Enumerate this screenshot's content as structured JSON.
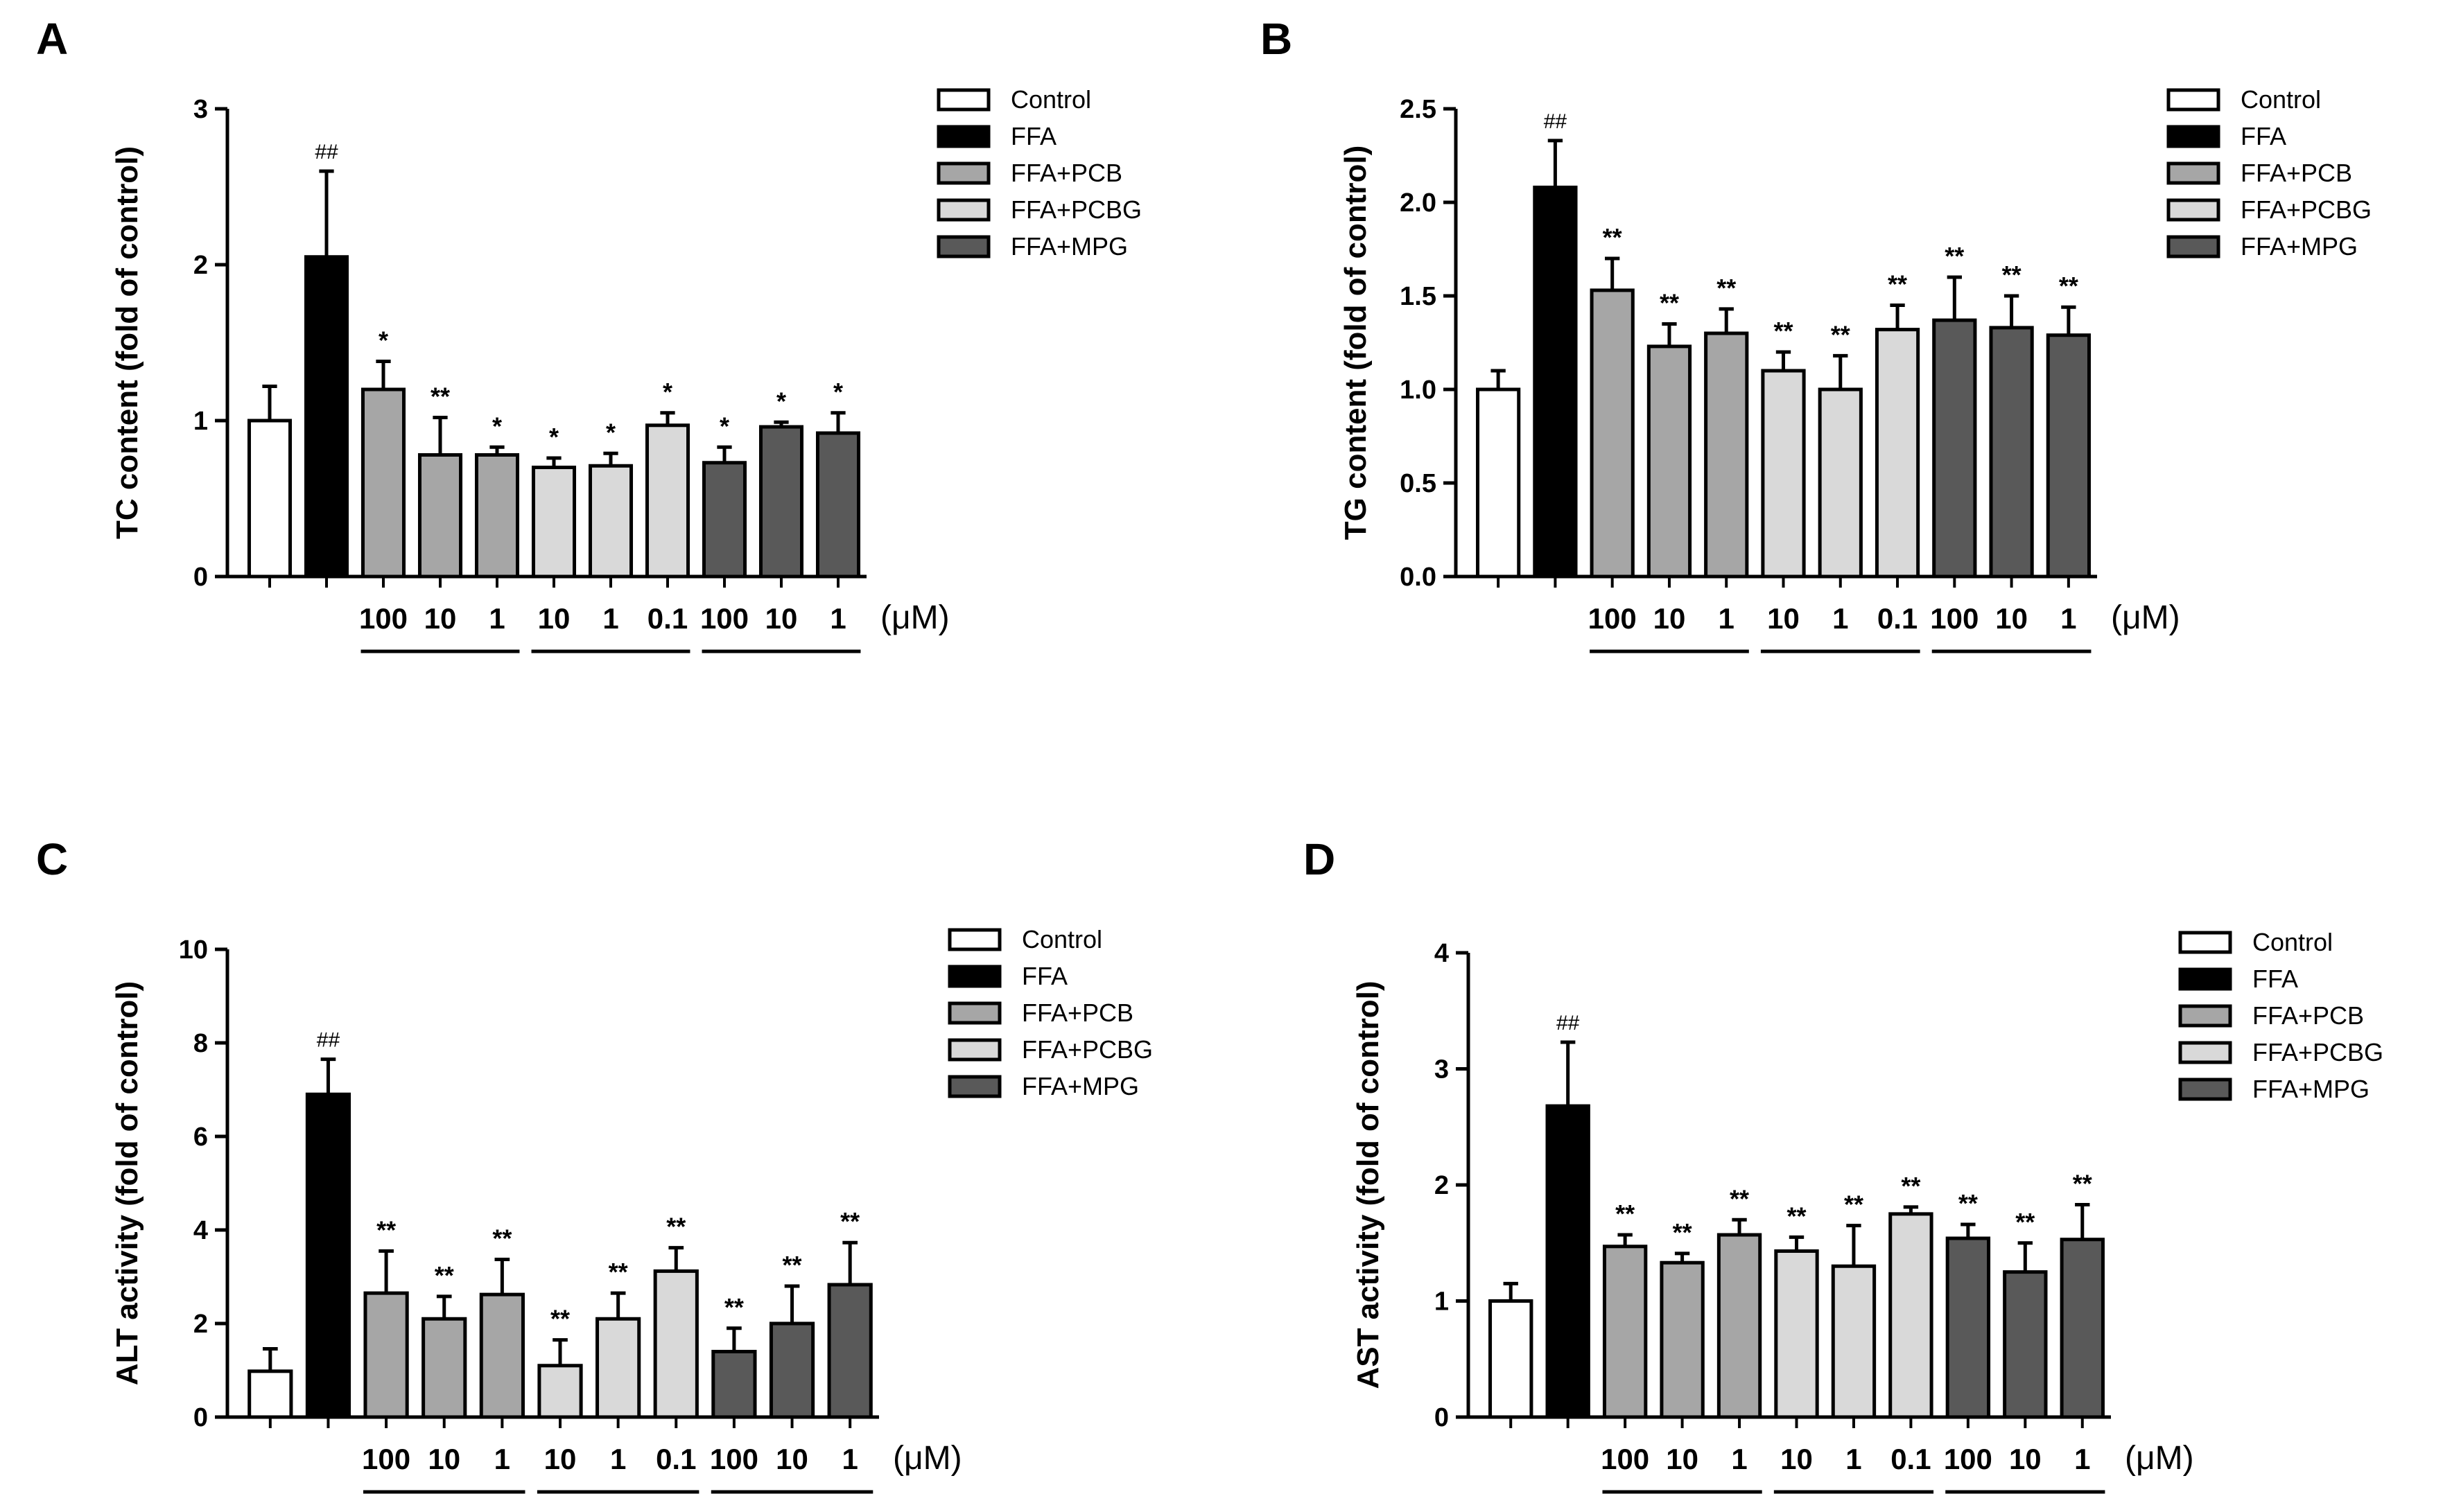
{
  "figure": {
    "legend": [
      {
        "label": "Control",
        "color": "#ffffff"
      },
      {
        "label": "FFA",
        "color": "#000000"
      },
      {
        "label": "FFA+PCB",
        "color": "#a6a6a6"
      },
      {
        "label": "FFA+PCBG",
        "color": "#d9d9d9"
      },
      {
        "label": "FFA+MPG",
        "color": "#595959"
      }
    ],
    "unit_label": "(μM)",
    "dose_labels": [
      "",
      "",
      "100",
      "10",
      "1",
      "10",
      "1",
      "0.1",
      "100",
      "10",
      "1"
    ],
    "bar_groups": [
      0,
      1,
      2,
      2,
      2,
      3,
      3,
      3,
      4,
      4,
      4
    ]
  },
  "chart_data": [
    {
      "type": "bar",
      "panel": "A",
      "ylabel": "TC content (fold of control)",
      "ylim": [
        0,
        3
      ],
      "yticks": [
        "0",
        "1",
        "2",
        "3"
      ],
      "yticks_values": [
        0,
        1,
        2,
        3
      ],
      "values": [
        1.0,
        2.05,
        1.2,
        0.78,
        0.78,
        0.7,
        0.71,
        0.97,
        0.73,
        0.96,
        0.92
      ],
      "errors": [
        0.22,
        0.55,
        0.18,
        0.24,
        0.05,
        0.06,
        0.08,
        0.08,
        0.1,
        0.03,
        0.13
      ],
      "annotations": [
        "",
        "##",
        "*",
        "**",
        "*",
        "*",
        "*",
        "*",
        "*",
        "*",
        "*"
      ]
    },
    {
      "type": "bar",
      "panel": "B",
      "ylabel": "TG content (fold of control)",
      "ylim": [
        0,
        2.5
      ],
      "yticks": [
        "0.0",
        "0.5",
        "1.0",
        "1.5",
        "2.0",
        "2.5"
      ],
      "yticks_values": [
        0,
        0.5,
        1.0,
        1.5,
        2.0,
        2.5
      ],
      "values": [
        1.0,
        2.08,
        1.53,
        1.23,
        1.3,
        1.1,
        1.0,
        1.32,
        1.37,
        1.33,
        1.29
      ],
      "errors": [
        0.1,
        0.25,
        0.17,
        0.12,
        0.13,
        0.1,
        0.18,
        0.13,
        0.23,
        0.17,
        0.15
      ],
      "annotations": [
        "",
        "##",
        "**",
        "**",
        "**",
        "**",
        "**",
        "**",
        "**",
        "**",
        "**"
      ]
    },
    {
      "type": "bar",
      "panel": "C",
      "ylabel": "ALT activity (fold of control)",
      "ylim": [
        0,
        10
      ],
      "yticks": [
        "0",
        "2",
        "4",
        "6",
        "8",
        "10"
      ],
      "yticks_values": [
        0,
        2,
        4,
        6,
        8,
        10
      ],
      "values": [
        0.98,
        6.9,
        2.65,
        2.1,
        2.62,
        1.1,
        2.1,
        3.12,
        1.4,
        2.0,
        2.83
      ],
      "errors": [
        0.48,
        0.75,
        0.9,
        0.48,
        0.75,
        0.55,
        0.55,
        0.5,
        0.5,
        0.8,
        0.9
      ],
      "annotations": [
        "",
        "##",
        "**",
        "**",
        "**",
        "**",
        "**",
        "**",
        "**",
        "**",
        "**"
      ]
    },
    {
      "type": "bar",
      "panel": "D",
      "ylabel": "AST activity (fold of control)",
      "ylim": [
        0,
        4
      ],
      "yticks": [
        "0",
        "1",
        "2",
        "3",
        "4"
      ],
      "yticks_values": [
        0,
        1,
        2,
        3,
        4
      ],
      "values": [
        1.0,
        2.68,
        1.47,
        1.33,
        1.57,
        1.43,
        1.3,
        1.75,
        1.54,
        1.25,
        1.53
      ],
      "errors": [
        0.15,
        0.55,
        0.1,
        0.08,
        0.13,
        0.12,
        0.35,
        0.06,
        0.12,
        0.25,
        0.3
      ],
      "annotations": [
        "",
        "##",
        "**",
        "**",
        "**",
        "**",
        "**",
        "**",
        "**",
        "**",
        "**"
      ]
    }
  ]
}
